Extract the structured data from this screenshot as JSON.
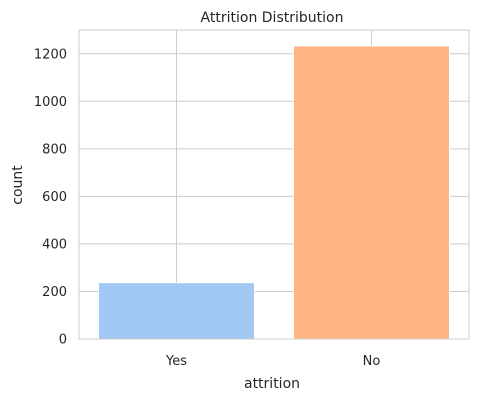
{
  "chart_data": {
    "type": "bar",
    "title": "Attrition Distribution",
    "xlabel": "attrition",
    "ylabel": "count",
    "categories": [
      "Yes",
      "No"
    ],
    "values": [
      237,
      1233
    ],
    "ylim": [
      0,
      1300
    ],
    "yticks": [
      0,
      200,
      400,
      600,
      800,
      1000,
      1200
    ],
    "colors": [
      "#a1c9f4",
      "#ffb482"
    ],
    "grid": true
  }
}
